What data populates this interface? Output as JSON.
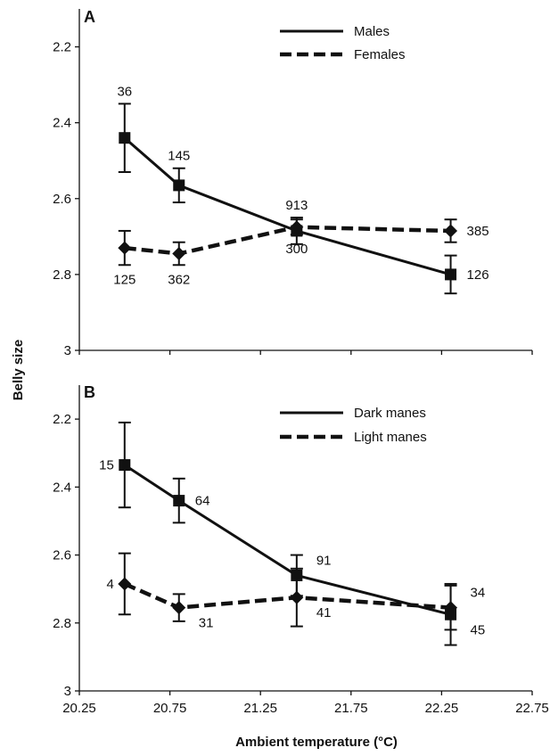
{
  "figure": {
    "ylabel": "Belly size",
    "xlabel": "Ambient temperature (°C)"
  },
  "chart_data": [
    {
      "type": "line",
      "panel": "A",
      "ylabel": "Belly size",
      "xlabel": "Ambient temperature (°C)",
      "y_inverted": true,
      "ylim": [
        2.1,
        3.0
      ],
      "yticks": [
        "2.2",
        "2.4",
        "2.6",
        "2.8",
        "3"
      ],
      "xlim": [
        20.25,
        22.75
      ],
      "grid": false,
      "legend_placement": "top-right",
      "series": [
        {
          "name": "Males",
          "style": "solid",
          "marker": "square",
          "x": [
            20.5,
            20.8,
            21.45,
            22.3
          ],
          "y": [
            2.44,
            2.565,
            2.685,
            2.8
          ],
          "err": [
            0.09,
            0.045,
            0.035,
            0.05
          ],
          "n": [
            "36",
            "145",
            "913",
            "126"
          ]
        },
        {
          "name": "Females",
          "style": "dashed",
          "marker": "diamond",
          "x": [
            20.5,
            20.8,
            21.45,
            22.3
          ],
          "y": [
            2.73,
            2.745,
            2.675,
            2.685
          ],
          "err": [
            0.045,
            0.03,
            0.02,
            0.03
          ],
          "n": [
            "125",
            "362",
            "300",
            "385"
          ]
        }
      ]
    },
    {
      "type": "line",
      "panel": "B",
      "ylabel": "Belly size",
      "xlabel": "Ambient temperature (°C)",
      "y_inverted": true,
      "ylim": [
        2.1,
        3.0
      ],
      "yticks": [
        "2.2",
        "2.4",
        "2.6",
        "2.8",
        "3"
      ],
      "xlim": [
        20.25,
        22.75
      ],
      "xticks": [
        "20.25",
        "20.75",
        "21.25",
        "21.75",
        "22.25",
        "22.75"
      ],
      "grid": false,
      "legend_placement": "top-right",
      "series": [
        {
          "name": "Dark manes",
          "style": "solid",
          "marker": "square",
          "x": [
            20.5,
            20.8,
            21.45,
            22.3
          ],
          "y": [
            2.335,
            2.44,
            2.66,
            2.775
          ],
          "err": [
            0.125,
            0.065,
            0.06,
            0.09
          ],
          "n": [
            "15",
            "64",
            "91",
            "45"
          ]
        },
        {
          "name": "Light manes",
          "style": "dashed",
          "marker": "diamond",
          "x": [
            20.5,
            20.8,
            21.45,
            22.3
          ],
          "y": [
            2.685,
            2.755,
            2.725,
            2.755
          ],
          "err": [
            0.09,
            0.04,
            0.085,
            0.065
          ],
          "n": [
            "4",
            "31",
            "41",
            "34"
          ]
        }
      ]
    }
  ]
}
